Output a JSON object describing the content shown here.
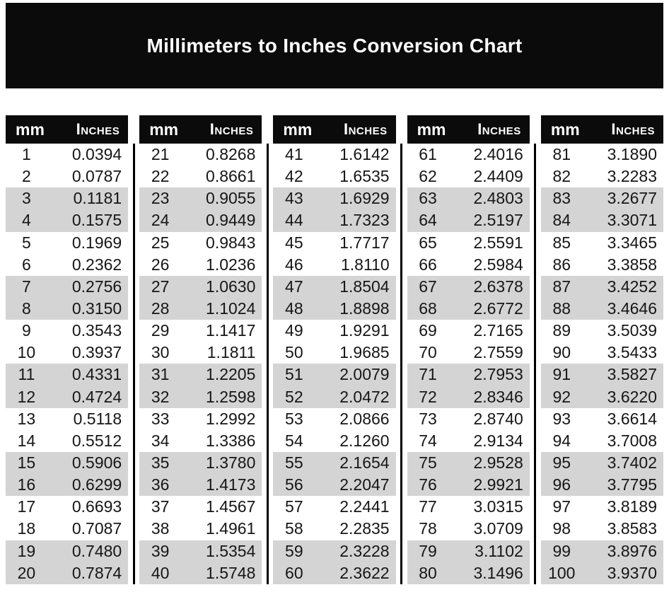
{
  "title": "Millimeters to Inches Conversion Chart",
  "columns": {
    "mm_label": "mm",
    "inches_label": "Inches"
  },
  "colors": {
    "banner_bg": "#0b0b0b",
    "header_bg": "#0b0b0b",
    "header_text": "#ffffff",
    "shaded_row": "#d4d4d4",
    "divider": "#000000",
    "text": "#161616"
  },
  "chart_data": {
    "type": "table",
    "title": "Millimeters to Inches Conversion Chart",
    "columns": [
      "mm",
      "Inches"
    ],
    "column_groups": 5,
    "rows_per_group": 20,
    "groups": [
      {
        "rows": [
          [
            "1",
            "0.0394"
          ],
          [
            "2",
            "0.0787"
          ],
          [
            "3",
            "0.1181"
          ],
          [
            "4",
            "0.1575"
          ],
          [
            "5",
            "0.1969"
          ],
          [
            "6",
            "0.2362"
          ],
          [
            "7",
            "0.2756"
          ],
          [
            "8",
            "0.3150"
          ],
          [
            "9",
            "0.3543"
          ],
          [
            "10",
            "0.3937"
          ],
          [
            "11",
            "0.4331"
          ],
          [
            "12",
            "0.4724"
          ],
          [
            "13",
            "0.5118"
          ],
          [
            "14",
            "0.5512"
          ],
          [
            "15",
            "0.5906"
          ],
          [
            "16",
            "0.6299"
          ],
          [
            "17",
            "0.6693"
          ],
          [
            "18",
            "0.7087"
          ],
          [
            "19",
            "0.7480"
          ],
          [
            "20",
            "0.7874"
          ]
        ]
      },
      {
        "rows": [
          [
            "21",
            "0.8268"
          ],
          [
            "22",
            "0.8661"
          ],
          [
            "23",
            "0.9055"
          ],
          [
            "24",
            "0.9449"
          ],
          [
            "25",
            "0.9843"
          ],
          [
            "26",
            "1.0236"
          ],
          [
            "27",
            "1.0630"
          ],
          [
            "28",
            "1.1024"
          ],
          [
            "29",
            "1.1417"
          ],
          [
            "30",
            "1.1811"
          ],
          [
            "31",
            "1.2205"
          ],
          [
            "32",
            "1.2598"
          ],
          [
            "33",
            "1.2992"
          ],
          [
            "34",
            "1.3386"
          ],
          [
            "35",
            "1.3780"
          ],
          [
            "36",
            "1.4173"
          ],
          [
            "37",
            "1.4567"
          ],
          [
            "38",
            "1.4961"
          ],
          [
            "39",
            "1.5354"
          ],
          [
            "40",
            "1.5748"
          ]
        ]
      },
      {
        "rows": [
          [
            "41",
            "1.6142"
          ],
          [
            "42",
            "1.6535"
          ],
          [
            "43",
            "1.6929"
          ],
          [
            "44",
            "1.7323"
          ],
          [
            "45",
            "1.7717"
          ],
          [
            "46",
            "1.8110"
          ],
          [
            "47",
            "1.8504"
          ],
          [
            "48",
            "1.8898"
          ],
          [
            "49",
            "1.9291"
          ],
          [
            "50",
            "1.9685"
          ],
          [
            "51",
            "2.0079"
          ],
          [
            "52",
            "2.0472"
          ],
          [
            "53",
            "2.0866"
          ],
          [
            "54",
            "2.1260"
          ],
          [
            "55",
            "2.1654"
          ],
          [
            "56",
            "2.2047"
          ],
          [
            "57",
            "2.2441"
          ],
          [
            "58",
            "2.2835"
          ],
          [
            "59",
            "2.3228"
          ],
          [
            "60",
            "2.3622"
          ]
        ]
      },
      {
        "rows": [
          [
            "61",
            "2.4016"
          ],
          [
            "62",
            "2.4409"
          ],
          [
            "63",
            "2.4803"
          ],
          [
            "64",
            "2.5197"
          ],
          [
            "65",
            "2.5591"
          ],
          [
            "66",
            "2.5984"
          ],
          [
            "67",
            "2.6378"
          ],
          [
            "68",
            "2.6772"
          ],
          [
            "69",
            "2.7165"
          ],
          [
            "70",
            "2.7559"
          ],
          [
            "71",
            "2.7953"
          ],
          [
            "72",
            "2.8346"
          ],
          [
            "73",
            "2.8740"
          ],
          [
            "74",
            "2.9134"
          ],
          [
            "75",
            "2.9528"
          ],
          [
            "76",
            "2.9921"
          ],
          [
            "77",
            "3.0315"
          ],
          [
            "78",
            "3.0709"
          ],
          [
            "79",
            "3.1102"
          ],
          [
            "80",
            "3.1496"
          ]
        ]
      },
      {
        "rows": [
          [
            "81",
            "3.1890"
          ],
          [
            "82",
            "3.2283"
          ],
          [
            "83",
            "3.2677"
          ],
          [
            "84",
            "3.3071"
          ],
          [
            "85",
            "3.3465"
          ],
          [
            "86",
            "3.3858"
          ],
          [
            "87",
            "3.4252"
          ],
          [
            "88",
            "3.4646"
          ],
          [
            "89",
            "3.5039"
          ],
          [
            "90",
            "3.5433"
          ],
          [
            "91",
            "3.5827"
          ],
          [
            "92",
            "3.6220"
          ],
          [
            "93",
            "3.6614"
          ],
          [
            "94",
            "3.7008"
          ],
          [
            "95",
            "3.7402"
          ],
          [
            "96",
            "3.7795"
          ],
          [
            "97",
            "3.8189"
          ],
          [
            "98",
            "3.8583"
          ],
          [
            "99",
            "3.8976"
          ],
          [
            "100",
            "3.9370"
          ]
        ]
      }
    ]
  }
}
